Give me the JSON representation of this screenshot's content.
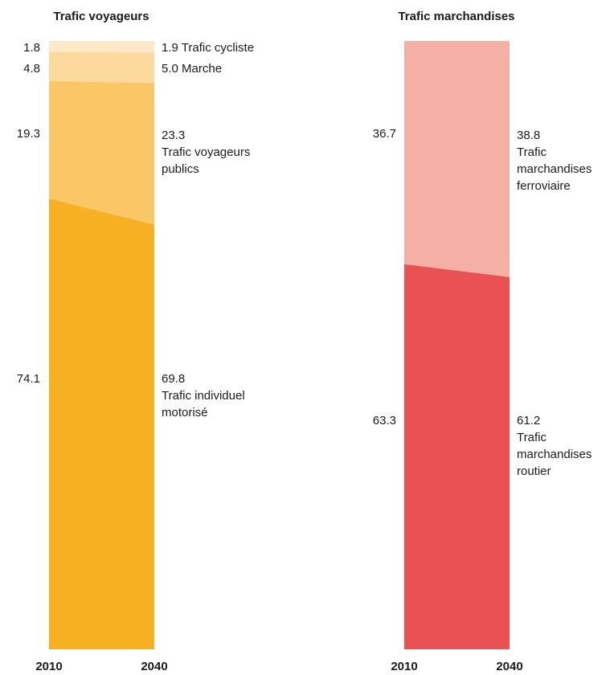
{
  "chart_data": [
    {
      "type": "area",
      "title": "Trafic voyageurs",
      "x": [
        "2010",
        "2040"
      ],
      "series": [
        {
          "name": "Trafic individuel motorisé",
          "values": [
            74.1,
            69.8
          ],
          "color": "#F6B021"
        },
        {
          "name": "Trafic voyageurs publics",
          "values": [
            19.3,
            23.3
          ],
          "color": "#FAC666"
        },
        {
          "name": "Marche",
          "values": [
            4.8,
            5.0
          ],
          "color": "#FCD99D"
        },
        {
          "name": "Trafic cycliste",
          "values": [
            1.8,
            1.9
          ],
          "color": "#FDE8C8"
        }
      ],
      "left_labels": [
        "74.1",
        "19.3",
        "4.8",
        "1.8"
      ],
      "right_labels": [
        [
          "69.8",
          "Trafic individuel",
          "motorisé"
        ],
        [
          "23.3",
          "Trafic voyageurs",
          "publics"
        ],
        [
          "5.0 Marche"
        ],
        [
          "1.9 Trafic cycliste"
        ]
      ]
    },
    {
      "type": "area",
      "title": "Trafic marchandises",
      "x": [
        "2010",
        "2040"
      ],
      "series": [
        {
          "name": "Trafic marchandises routier",
          "values": [
            63.3,
            61.2
          ],
          "color": "#E95153"
        },
        {
          "name": "Trafic marchandises ferroviaire",
          "values": [
            36.7,
            38.8
          ],
          "color": "#F5B0A6"
        }
      ],
      "left_labels": [
        "63.3",
        "36.7"
      ],
      "right_labels": [
        [
          "61.2",
          "Trafic",
          "marchandises",
          "routier"
        ],
        [
          "38.8",
          "Trafic",
          "marchandises",
          "ferroviaire"
        ]
      ]
    }
  ]
}
